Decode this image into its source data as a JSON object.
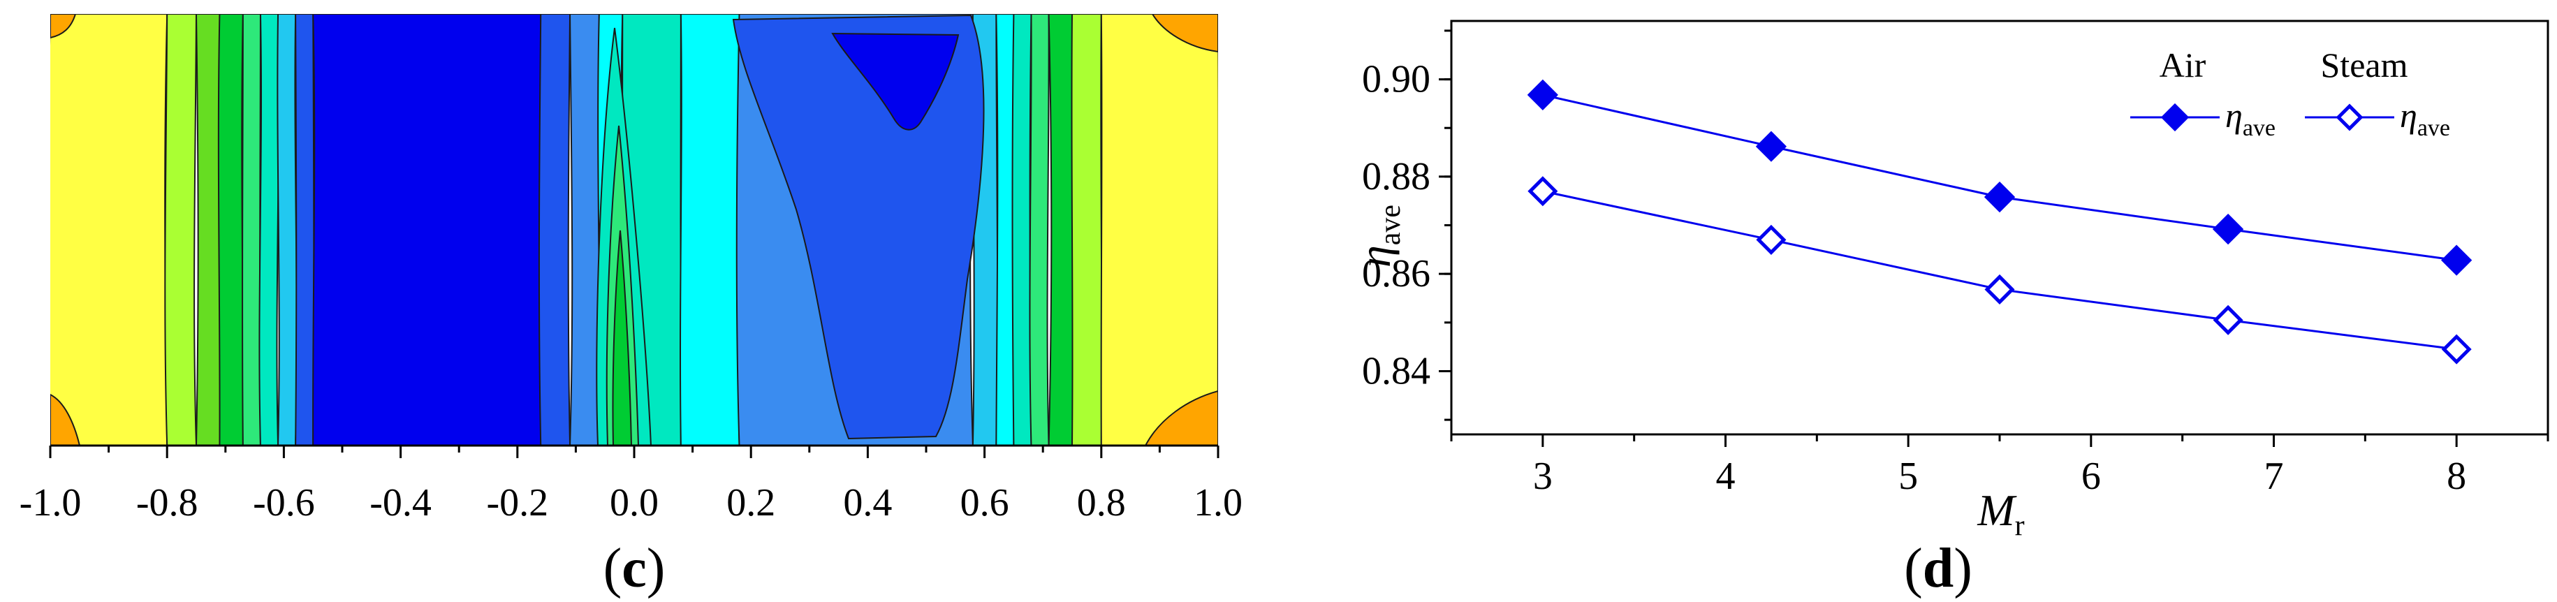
{
  "panels": {
    "c_label_open": "(",
    "c_label_letter": "c",
    "c_label_close": ")",
    "d_label_open": "(",
    "d_label_letter": "d",
    "d_label_close": ")"
  },
  "colors": {
    "series": "#0000EE",
    "contour_line": "#1a1a1a",
    "contour_levels": [
      "#0000EE",
      "#1f55ee",
      "#3a8cf0",
      "#22c8f0",
      "#00ffff",
      "#00e8c0",
      "#2ee87a",
      "#00cc33",
      "#66dd22",
      "#aaff33",
      "#ffff44",
      "#ffee33",
      "#ffa500"
    ]
  },
  "chart_data": [
    {
      "type": "heatmap",
      "panel": "c",
      "title": "",
      "xlabel": "",
      "ylabel": "",
      "xlim": [
        -1.0,
        1.0
      ],
      "x_ticks": [
        "-1.0",
        "-0.8",
        "-0.6",
        "-0.4",
        "-0.2",
        "0.0",
        "0.2",
        "0.4",
        "0.6",
        "0.8",
        "1.0"
      ],
      "x_tick_values": [
        -1.0,
        -0.8,
        -0.6,
        -0.4,
        -0.2,
        0.0,
        0.2,
        0.4,
        0.6,
        0.8,
        1.0
      ],
      "colorbar": false,
      "bands": [
        {
          "x0": -1.0,
          "x1": -0.8,
          "color_index": 10
        },
        {
          "x0": -0.8,
          "x1": -0.75,
          "color_index": 9
        },
        {
          "x0": -0.75,
          "x1": -0.71,
          "color_index": 8
        },
        {
          "x0": -0.71,
          "x1": -0.67,
          "color_index": 7
        },
        {
          "x0": -0.67,
          "x1": -0.64,
          "color_index": 6
        },
        {
          "x0": -0.64,
          "x1": -0.61,
          "color_index": 5
        },
        {
          "x0": -0.61,
          "x1": -0.58,
          "color_index": 3
        },
        {
          "x0": -0.58,
          "x1": -0.55,
          "color_index": 1
        },
        {
          "x0": -0.55,
          "x1": -0.16,
          "color_index": 0
        },
        {
          "x0": -0.16,
          "x1": -0.11,
          "color_index": 1
        },
        {
          "x0": -0.11,
          "x1": -0.06,
          "color_index": 2
        },
        {
          "x0": -0.06,
          "x1": -0.02,
          "color_index": 4
        },
        {
          "x0": -0.02,
          "x1": 0.08,
          "color_index": 5
        },
        {
          "x0": 0.08,
          "x1": 0.18,
          "color_index": 4
        },
        {
          "x0": 0.18,
          "x1": 0.58,
          "color_index": 2
        },
        {
          "x0": 0.58,
          "x1": 0.62,
          "color_index": 3
        },
        {
          "x0": 0.62,
          "x1": 0.65,
          "color_index": 4
        },
        {
          "x0": 0.65,
          "x1": 0.68,
          "color_index": 5
        },
        {
          "x0": 0.68,
          "x1": 0.71,
          "color_index": 6
        },
        {
          "x0": 0.71,
          "x1": 0.75,
          "color_index": 7
        },
        {
          "x0": 0.75,
          "x1": 0.8,
          "color_index": 9
        },
        {
          "x0": 0.8,
          "x1": 1.0,
          "color_index": 10
        }
      ]
    },
    {
      "type": "line",
      "panel": "d",
      "title": "",
      "xlabel": "M",
      "xlabel_sub": "r",
      "ylabel": "η",
      "ylabel_sub": "ave",
      "xlim": [
        2.5,
        8.5
      ],
      "ylim": [
        0.827,
        0.912
      ],
      "x_ticks": [
        3,
        4,
        5,
        6,
        7,
        8
      ],
      "y_ticks": [
        "0.84",
        "0.86",
        "0.88",
        "0.90"
      ],
      "y_tick_values": [
        0.84,
        0.86,
        0.88,
        0.9
      ],
      "grid": false,
      "legend": {
        "placement": "top-right",
        "group_titles": [
          "Air",
          "Steam"
        ],
        "entry_symbol": "η",
        "entry_sub": "ave"
      },
      "x": [
        3,
        4.25,
        5.5,
        6.75,
        8
      ],
      "series": [
        {
          "group": "Air",
          "marker": "filled-diamond",
          "values": [
            0.8968,
            0.8862,
            0.8758,
            0.8692,
            0.8628
          ]
        },
        {
          "group": "Steam",
          "marker": "open-diamond",
          "values": [
            0.877,
            0.867,
            0.8568,
            0.8505,
            0.8445
          ]
        }
      ]
    }
  ]
}
